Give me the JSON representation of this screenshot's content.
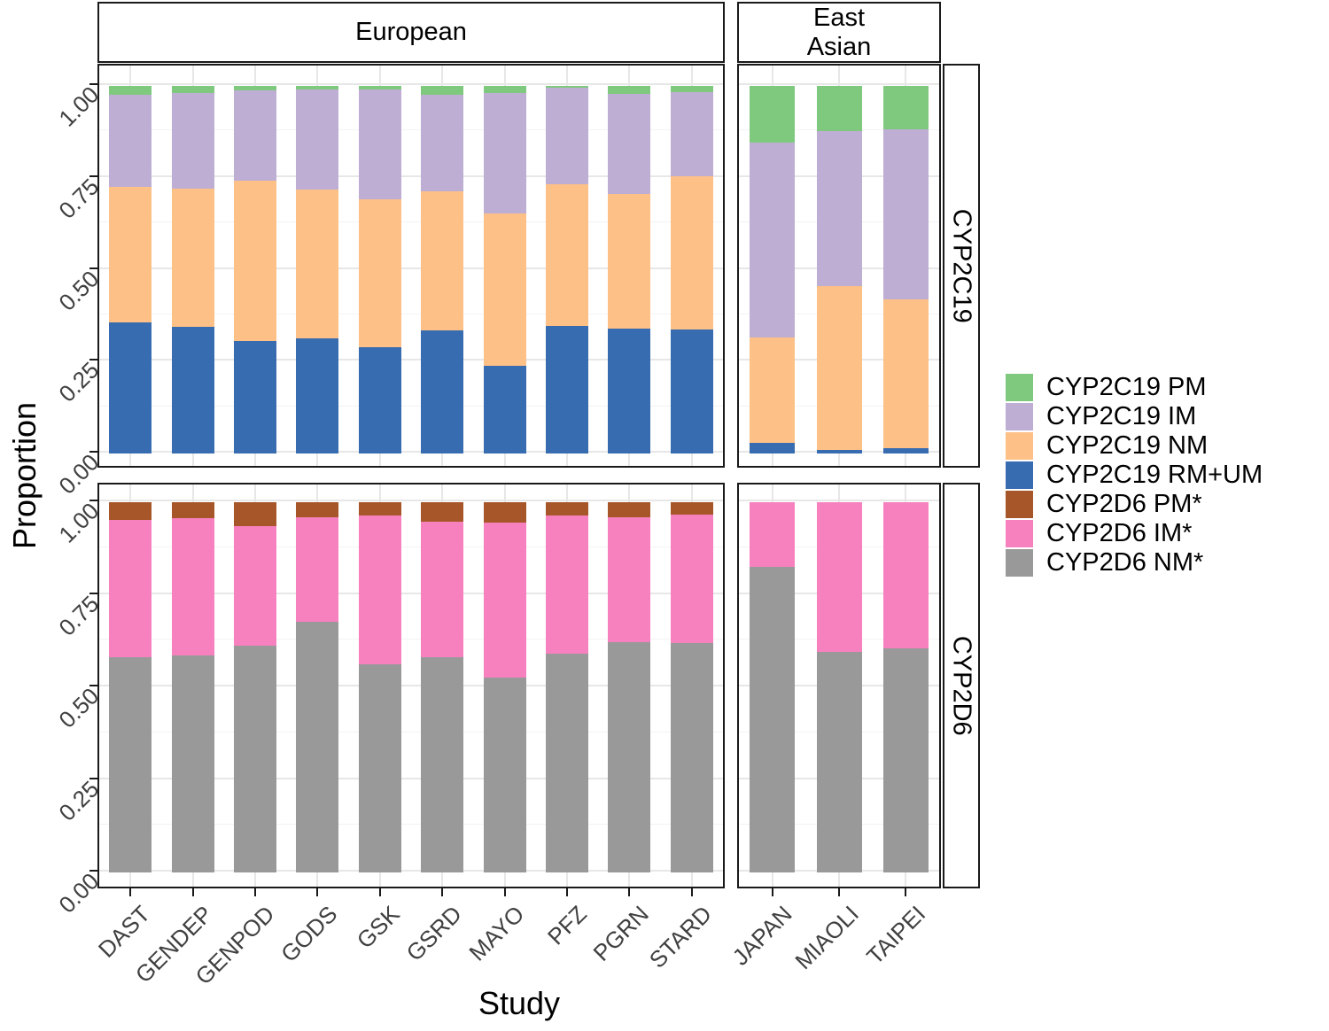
{
  "figure": {
    "y_axis_title": "Proportion",
    "x_axis_title": "Study",
    "y_tick_labels": [
      "1.00",
      "0.75",
      "0.50",
      "0.25",
      "0.00"
    ]
  },
  "facets": {
    "col_labels": [
      "European",
      "East Asian"
    ],
    "row_labels": [
      "CYP2C19",
      "CYP2D6"
    ]
  },
  "colors": {
    "cyp2c19_pm": "#7FC97F",
    "cyp2c19_im": "#BEAED4",
    "cyp2c19_nm": "#FDC086",
    "cyp2c19_rm_um": "#386CB0",
    "cyp2d6_pm": "#A65628",
    "cyp2d6_im": "#F781BF",
    "cyp2d6_nm": "#999999",
    "panel_border": "#1A1A1A",
    "grid_major": "#E7E7E7",
    "grid_minor": "#F3F3F3",
    "axis_text": "#404040"
  },
  "legend": {
    "items": [
      {
        "label": "CYP2C19 PM",
        "color": "#7FC97F"
      },
      {
        "label": "CYP2C19 IM",
        "color": "#BEAED4"
      },
      {
        "label": "CYP2C19 NM",
        "color": "#FDC086"
      },
      {
        "label": "CYP2C19 RM+UM",
        "color": "#386CB0"
      },
      {
        "label": "CYP2D6 PM*",
        "color": "#A65628"
      },
      {
        "label": "CYP2D6 IM*",
        "color": "#F781BF"
      },
      {
        "label": "CYP2D6 NM*",
        "color": "#999999"
      }
    ]
  },
  "chart_data": [
    {
      "type": "bar",
      "stacked": true,
      "stack_order": "top-to-bottom",
      "facet_column": "European",
      "facet_row": "CYP2C19",
      "xlabel": "Study",
      "ylabel": "Proportion",
      "ylim": [
        0,
        1
      ],
      "y_ticks": [
        0,
        0.25,
        0.5,
        0.75,
        1.0
      ],
      "grid": true,
      "categories": [
        "DAST",
        "GENDEP",
        "GENPOD",
        "GODS",
        "GSK",
        "GSRD",
        "MAYO",
        "PFZ",
        "PGRN",
        "STARD"
      ],
      "series": [
        {
          "name": "CYP2C19 PM",
          "color": "#7FC97F",
          "values": [
            0.024,
            0.019,
            0.012,
            0.01,
            0.01,
            0.024,
            0.019,
            0.005,
            0.022,
            0.018
          ]
        },
        {
          "name": "CYP2C19 IM",
          "color": "#BEAED4",
          "values": [
            0.251,
            0.261,
            0.246,
            0.272,
            0.299,
            0.263,
            0.327,
            0.263,
            0.271,
            0.227
          ]
        },
        {
          "name": "CYP2C19 NM",
          "color": "#FDC086",
          "values": [
            0.369,
            0.375,
            0.436,
            0.404,
            0.401,
            0.379,
            0.416,
            0.386,
            0.367,
            0.417
          ]
        },
        {
          "name": "CYP2C19 RM+UM",
          "color": "#386CB0",
          "values": [
            0.356,
            0.345,
            0.306,
            0.314,
            0.29,
            0.334,
            0.238,
            0.346,
            0.34,
            0.338
          ]
        }
      ]
    },
    {
      "type": "bar",
      "stacked": true,
      "stack_order": "top-to-bottom",
      "facet_column": "East Asian",
      "facet_row": "CYP2C19",
      "xlabel": "Study",
      "ylabel": "Proportion",
      "ylim": [
        0,
        1
      ],
      "y_ticks": [
        0,
        0.25,
        0.5,
        0.75,
        1.0
      ],
      "grid": true,
      "categories": [
        "JAPAN",
        "MIAOLI",
        "TAIPEI"
      ],
      "series": [
        {
          "name": "CYP2C19 PM",
          "color": "#7FC97F",
          "values": [
            0.155,
            0.123,
            0.118
          ]
        },
        {
          "name": "CYP2C19 IM",
          "color": "#BEAED4",
          "values": [
            0.53,
            0.422,
            0.462
          ]
        },
        {
          "name": "CYP2C19 NM",
          "color": "#FDC086",
          "values": [
            0.285,
            0.445,
            0.405
          ]
        },
        {
          "name": "CYP2C19 RM+UM",
          "color": "#386CB0",
          "values": [
            0.03,
            0.01,
            0.015
          ]
        }
      ]
    },
    {
      "type": "bar",
      "stacked": true,
      "stack_order": "top-to-bottom",
      "facet_column": "European",
      "facet_row": "CYP2D6",
      "xlabel": "Study",
      "ylabel": "Proportion",
      "ylim": [
        0,
        1
      ],
      "y_ticks": [
        0,
        0.25,
        0.5,
        0.75,
        1.0
      ],
      "grid": true,
      "categories": [
        "DAST",
        "GENDEP",
        "GENPOD",
        "GODS",
        "GSK",
        "GSRD",
        "MAYO",
        "PFZ",
        "PGRN",
        "STARD"
      ],
      "series": [
        {
          "name": "CYP2D6 PM*",
          "color": "#A65628",
          "values": [
            0.048,
            0.042,
            0.064,
            0.04,
            0.036,
            0.052,
            0.054,
            0.036,
            0.04,
            0.034
          ]
        },
        {
          "name": "CYP2D6 IM*",
          "color": "#F781BF",
          "values": [
            0.37,
            0.371,
            0.323,
            0.283,
            0.402,
            0.366,
            0.419,
            0.374,
            0.338,
            0.347
          ]
        },
        {
          "name": "CYP2D6 NM*",
          "color": "#999999",
          "values": [
            0.582,
            0.587,
            0.613,
            0.677,
            0.562,
            0.582,
            0.527,
            0.59,
            0.622,
            0.619
          ]
        }
      ]
    },
    {
      "type": "bar",
      "stacked": true,
      "stack_order": "top-to-bottom",
      "facet_column": "East Asian",
      "facet_row": "CYP2D6",
      "xlabel": "Study",
      "ylabel": "Proportion",
      "ylim": [
        0,
        1
      ],
      "y_ticks": [
        0,
        0.25,
        0.5,
        0.75,
        1.0
      ],
      "grid": true,
      "categories": [
        "JAPAN",
        "MIAOLI",
        "TAIPEI"
      ],
      "series": [
        {
          "name": "CYP2D6 PM*",
          "color": "#A65628",
          "values": [
            0.0,
            0.0,
            0.0
          ]
        },
        {
          "name": "CYP2D6 IM*",
          "color": "#F781BF",
          "values": [
            0.175,
            0.405,
            0.395
          ]
        },
        {
          "name": "CYP2D6 NM*",
          "color": "#999999",
          "values": [
            0.825,
            0.595,
            0.605
          ]
        }
      ]
    }
  ]
}
